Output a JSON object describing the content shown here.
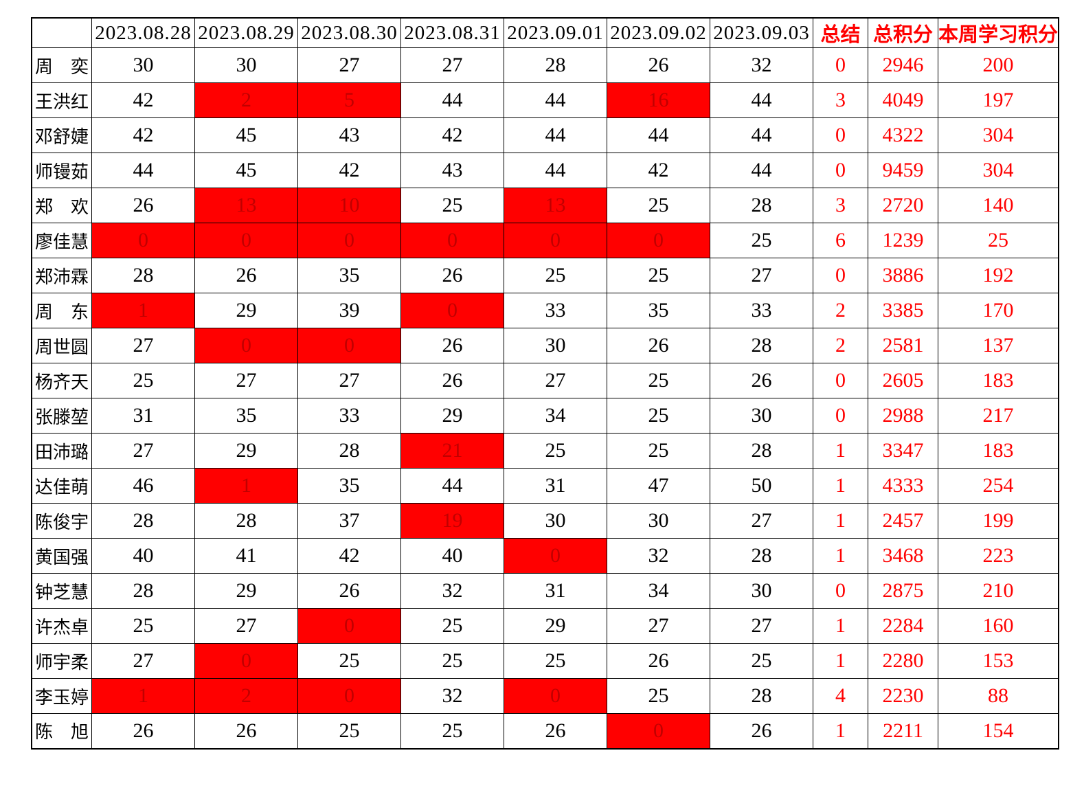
{
  "table": {
    "header": {
      "name_col": "",
      "date_cols": [
        "2023.08.28",
        "2023.08.29",
        "2023.08.30",
        "2023.08.31",
        "2023.09.01",
        "2023.09.02",
        "2023.09.03"
      ],
      "summary_col": "总结",
      "total_col": "总积分",
      "week_col": "本周学习积分"
    },
    "rows": [
      {
        "name": "周奕",
        "values": [
          30,
          30,
          27,
          27,
          28,
          26,
          32
        ],
        "red_cells": [],
        "summary": 0,
        "total": 2946,
        "week": 200
      },
      {
        "name": "王洪红",
        "values": [
          42,
          2,
          5,
          44,
          44,
          16,
          44
        ],
        "red_cells": [
          1,
          2,
          5
        ],
        "summary": 3,
        "total": 4049,
        "week": 197
      },
      {
        "name": "邓舒婕",
        "values": [
          42,
          45,
          43,
          42,
          44,
          44,
          44
        ],
        "red_cells": [],
        "summary": 0,
        "total": 4322,
        "week": 304
      },
      {
        "name": "师镘茹",
        "values": [
          44,
          45,
          42,
          43,
          44,
          42,
          44
        ],
        "red_cells": [],
        "summary": 0,
        "total": 9459,
        "week": 304
      },
      {
        "name": "郑欢",
        "values": [
          26,
          13,
          10,
          25,
          13,
          25,
          28
        ],
        "red_cells": [
          1,
          2,
          4
        ],
        "summary": 3,
        "total": 2720,
        "week": 140
      },
      {
        "name": "廖佳慧",
        "values": [
          0,
          0,
          0,
          0,
          0,
          0,
          25
        ],
        "red_cells": [
          0,
          1,
          2,
          3,
          4,
          5
        ],
        "summary": 6,
        "total": 1239,
        "week": 25
      },
      {
        "name": "郑沛霖",
        "values": [
          28,
          26,
          35,
          26,
          25,
          25,
          27
        ],
        "red_cells": [],
        "summary": 0,
        "total": 3886,
        "week": 192
      },
      {
        "name": "周东",
        "values": [
          1,
          29,
          39,
          0,
          33,
          35,
          33
        ],
        "red_cells": [
          0,
          3
        ],
        "summary": 2,
        "total": 3385,
        "week": 170
      },
      {
        "name": "周世圆",
        "values": [
          27,
          0,
          0,
          26,
          30,
          26,
          28
        ],
        "red_cells": [
          1,
          2
        ],
        "summary": 2,
        "total": 2581,
        "week": 137
      },
      {
        "name": "杨齐天",
        "values": [
          25,
          27,
          27,
          26,
          27,
          25,
          26
        ],
        "red_cells": [],
        "summary": 0,
        "total": 2605,
        "week": 183
      },
      {
        "name": "张滕堃",
        "values": [
          31,
          35,
          33,
          29,
          34,
          25,
          30
        ],
        "red_cells": [],
        "summary": 0,
        "total": 2988,
        "week": 217
      },
      {
        "name": "田沛璐",
        "values": [
          27,
          29,
          28,
          21,
          25,
          25,
          28
        ],
        "red_cells": [
          3
        ],
        "summary": 1,
        "total": 3347,
        "week": 183
      },
      {
        "name": "达佳萌",
        "values": [
          46,
          1,
          35,
          44,
          31,
          47,
          50
        ],
        "red_cells": [
          1
        ],
        "summary": 1,
        "total": 4333,
        "week": 254
      },
      {
        "name": "陈俊宇",
        "values": [
          28,
          28,
          37,
          19,
          30,
          30,
          27
        ],
        "red_cells": [
          3
        ],
        "summary": 1,
        "total": 2457,
        "week": 199
      },
      {
        "name": "黄国强",
        "values": [
          40,
          41,
          42,
          40,
          0,
          32,
          28
        ],
        "red_cells": [
          4
        ],
        "summary": 1,
        "total": 3468,
        "week": 223
      },
      {
        "name": "钟芝慧",
        "values": [
          28,
          29,
          26,
          32,
          31,
          34,
          30
        ],
        "red_cells": [],
        "summary": 0,
        "total": 2875,
        "week": 210
      },
      {
        "name": "许杰卓",
        "values": [
          25,
          27,
          0,
          25,
          29,
          27,
          27
        ],
        "red_cells": [
          2
        ],
        "summary": 1,
        "total": 2284,
        "week": 160
      },
      {
        "name": "师宇柔",
        "values": [
          27,
          0,
          25,
          25,
          25,
          26,
          25
        ],
        "red_cells": [
          1
        ],
        "summary": 1,
        "total": 2280,
        "week": 153
      },
      {
        "name": "李玉婷",
        "values": [
          1,
          2,
          0,
          32,
          0,
          25,
          28
        ],
        "red_cells": [
          0,
          1,
          2,
          4
        ],
        "summary": 4,
        "total": 2230,
        "week": 88
      },
      {
        "name": "陈旭",
        "values": [
          26,
          26,
          25,
          25,
          26,
          0,
          26
        ],
        "red_cells": [
          5
        ],
        "summary": 1,
        "total": 2211,
        "week": 154
      }
    ]
  },
  "colors": {
    "highlight_bg": "#ff0000",
    "highlight_text": "#c00000",
    "accent_text": "#ff0000",
    "border": "#000000",
    "background": "#ffffff"
  }
}
